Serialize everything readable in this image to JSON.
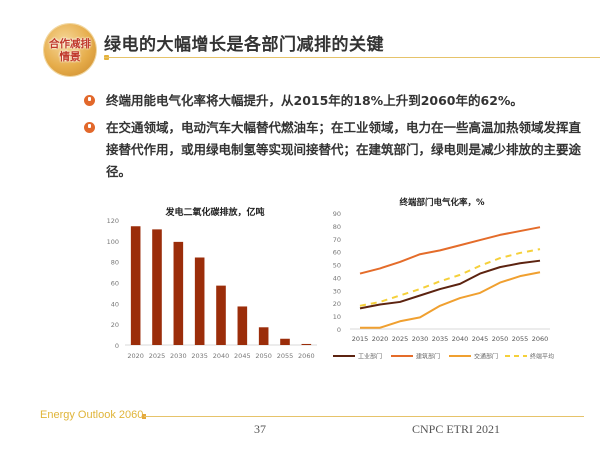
{
  "header": {
    "logo_line1": "合作减排",
    "logo_line2": "情景",
    "title": "绿电的大幅增长是各部门减排的关键"
  },
  "bullets": [
    {
      "icon": "power-bullet-icon",
      "text": "终端用能电气化率将大幅提升，从2015年的18%上升到2060年的62%。"
    },
    {
      "icon": "power-bullet-icon",
      "text": "在交通领域，电动汽车大幅替代燃油车；在工业领域，电力在一些高温加热领域发挥直接替代作用，或用绿电制氢等实现间接替代；在建筑部门，绿电则是减少排放的主要途径。"
    }
  ],
  "colors": {
    "bar": "#9b2d0a",
    "industry": "#5c2310",
    "building": "#e46c2a",
    "transport": "#f0a030",
    "average": "#f5d03a",
    "accent_gold": "#e0b53a"
  },
  "chart_data": [
    {
      "type": "bar",
      "title": "发电二氧化碳排放，亿吨",
      "categories": [
        "2020",
        "2025",
        "2030",
        "2035",
        "2040",
        "2045",
        "2050",
        "2055",
        "2060"
      ],
      "values": [
        114,
        111,
        99,
        84,
        57,
        37,
        17,
        6,
        1
      ],
      "xlabel": "",
      "ylabel": "",
      "ylim": [
        0,
        120
      ],
      "yticks": [
        0,
        20,
        40,
        60,
        80,
        100,
        120
      ],
      "grid": false
    },
    {
      "type": "line",
      "title": "终端部门电气化率，%",
      "x": [
        "2015",
        "2020",
        "2025",
        "2030",
        "2035",
        "2040",
        "2045",
        "2050",
        "2055",
        "2060"
      ],
      "series": [
        {
          "name": "工业部门",
          "values": [
            16,
            19,
            21,
            26,
            31,
            35,
            43,
            48,
            51,
            53
          ],
          "style": "solid"
        },
        {
          "name": "建筑部门",
          "values": [
            43,
            47,
            52,
            58,
            61,
            65,
            69,
            73,
            76,
            79
          ],
          "style": "solid"
        },
        {
          "name": "交通部门",
          "values": [
            1,
            1,
            6,
            9,
            18,
            24,
            28,
            36,
            41,
            44
          ],
          "style": "solid"
        },
        {
          "name": "终端平均",
          "values": [
            18,
            21,
            26,
            31,
            37,
            42,
            49,
            55,
            59,
            62
          ],
          "style": "dashed"
        }
      ],
      "xlabel": "",
      "ylabel": "",
      "ylim": [
        0,
        90
      ],
      "yticks": [
        0,
        10,
        20,
        30,
        40,
        50,
        60,
        70,
        80,
        90
      ],
      "grid": false,
      "legend_position": "bottom"
    }
  ],
  "footer": {
    "left": "Energy Outlook 2060",
    "page": "37",
    "right": "CNPC ETRI 2021"
  }
}
